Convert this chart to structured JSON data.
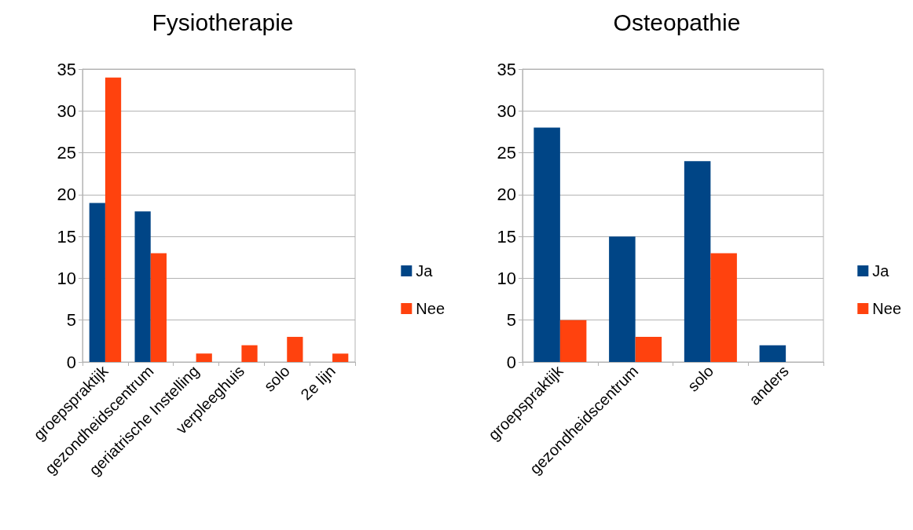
{
  "chart_data": [
    {
      "type": "bar",
      "title": "Fysiotherapie",
      "categories": [
        "groepspraktijk",
        "gezondheidscentrum",
        "geriatrische Instelling",
        "verpleeghuis",
        "solo",
        "2e lijn"
      ],
      "series": [
        {
          "name": "Ja",
          "color": "#004586",
          "values": [
            19,
            18,
            0,
            0,
            0,
            0
          ]
        },
        {
          "name": "Nee",
          "color": "#ff420e",
          "values": [
            34,
            13,
            1,
            2,
            3,
            1
          ]
        }
      ],
      "ylim": [
        0,
        35
      ],
      "yticks": [
        0,
        5,
        10,
        15,
        20,
        25,
        30,
        35
      ],
      "grid": "y",
      "legend": "right"
    },
    {
      "type": "bar",
      "title": "Osteopathie",
      "categories": [
        "groepspraktijk",
        "gezondheidscentrum",
        "solo",
        "anders"
      ],
      "series": [
        {
          "name": "Ja",
          "color": "#004586",
          "values": [
            28,
            15,
            24,
            2
          ]
        },
        {
          "name": "Nee",
          "color": "#ff420e",
          "values": [
            5,
            3,
            13,
            0
          ]
        }
      ],
      "ylim": [
        0,
        35
      ],
      "yticks": [
        0,
        5,
        10,
        15,
        20,
        25,
        30,
        35
      ],
      "grid": "y",
      "legend": "right"
    }
  ]
}
